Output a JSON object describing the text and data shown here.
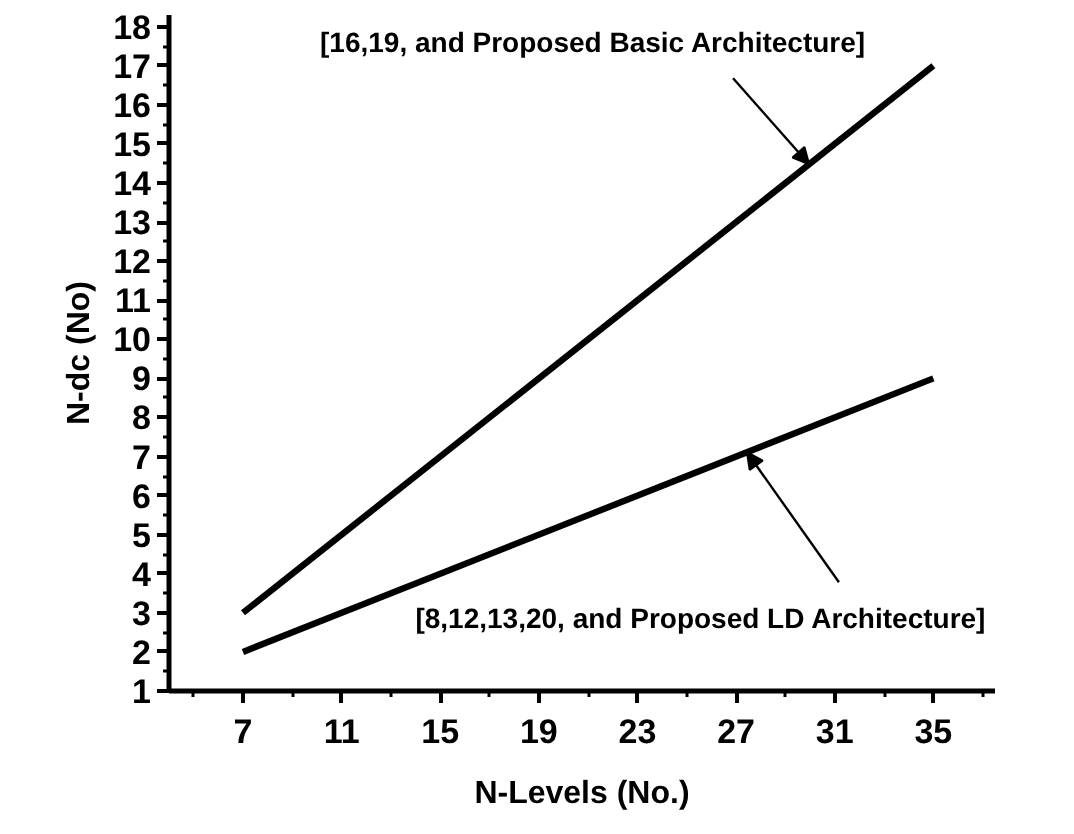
{
  "chart_data": {
    "type": "line",
    "xlabel": "N-Levels (No.)",
    "ylabel": "N-dc (No)",
    "xlim": [
      4,
      37.5
    ],
    "ylim": [
      1,
      18.3
    ],
    "xticks": [
      7,
      11,
      15,
      19,
      23,
      27,
      31,
      35
    ],
    "yticks": [
      1,
      2,
      3,
      4,
      5,
      6,
      7,
      8,
      9,
      10,
      11,
      12,
      13,
      14,
      15,
      16,
      17,
      18
    ],
    "x": [
      7,
      35
    ],
    "series": [
      {
        "name": "[16,19, and Proposed Basic Architecture]",
        "color": "#000000",
        "values": [
          3,
          17
        ]
      },
      {
        "name": "[8,12,13,20, and Proposed LD Architecture]",
        "color": "#000000",
        "values": [
          2,
          9
        ]
      }
    ],
    "grid": false,
    "legend": false,
    "marker": "none",
    "line_style": "solid"
  }
}
